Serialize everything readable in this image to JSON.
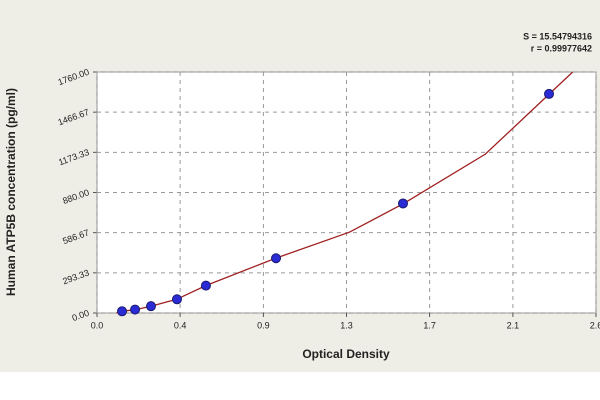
{
  "chart_data": {
    "type": "scatter",
    "x_label": "Optical Density",
    "y_label": "Human ATP5B concentration (pg/ml)",
    "annotations": [
      "S = 15.54794316",
      "r = 0.99977642"
    ],
    "xlim": [
      0,
      2.57
    ],
    "ylim": [
      0,
      1760
    ],
    "xticks": [
      {
        "value": 0,
        "label": "0.0"
      },
      {
        "value": 0.428,
        "label": "0.4"
      },
      {
        "value": 0.857,
        "label": "0.9"
      },
      {
        "value": 1.285,
        "label": "1.3"
      },
      {
        "value": 1.713,
        "label": "1.7"
      },
      {
        "value": 2.142,
        "label": "2.1"
      },
      {
        "value": 2.57,
        "label": "2.6"
      }
    ],
    "yticks": [
      {
        "value": 0,
        "label": "0.00"
      },
      293.33,
      586.67,
      {
        "value": 880,
        "label": "880.00"
      },
      1173.33,
      1466.67,
      {
        "value": 1760,
        "label": "1760.00"
      }
    ],
    "grid": true,
    "series": [
      {
        "type": "line",
        "color": "#a02020",
        "x": [
          0.1,
          0.13,
          0.2,
          0.28,
          0.41,
          0.56,
          0.92,
          1.3,
          1.58,
          2.0,
          2.33,
          2.45
        ],
        "values": [
          0,
          12.5,
          25,
          50,
          100,
          200,
          400,
          590,
          800,
          1160,
          1600,
          1760
        ]
      },
      {
        "type": "scatter",
        "color": "#2b2bd6",
        "x": [
          0.129,
          0.196,
          0.278,
          0.412,
          0.561,
          0.922,
          1.576,
          2.328
        ],
        "values": [
          12.5,
          25,
          50,
          100,
          200,
          400,
          800,
          1600
        ]
      }
    ]
  }
}
